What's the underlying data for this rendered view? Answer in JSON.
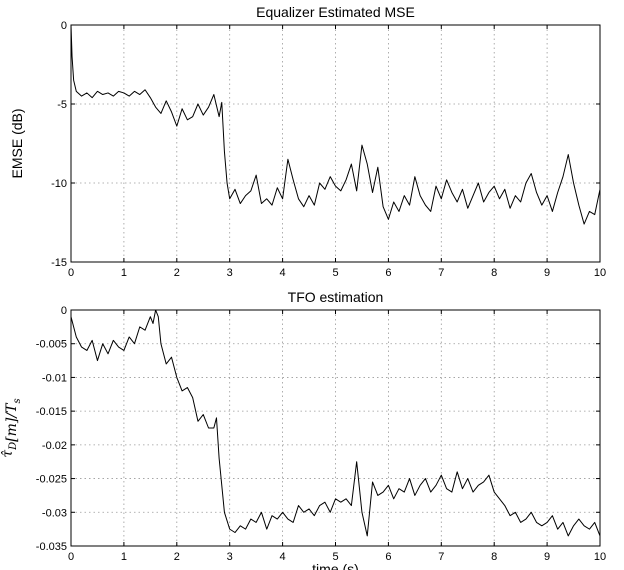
{
  "chart_data": [
    {
      "type": "line",
      "title": "Equalizer Estimated MSE",
      "xlabel": "",
      "ylabel": "EMSE (dB)",
      "xlim": [
        0,
        10
      ],
      "ylim": [
        -15,
        0
      ],
      "xticks": [
        "0",
        "1",
        "2",
        "3",
        "4",
        "5",
        "6",
        "7",
        "8",
        "9",
        "10"
      ],
      "yticks": [
        "0",
        "-5",
        "-10",
        "-15"
      ],
      "grid": true,
      "series": [
        {
          "color": "#000000",
          "x": [
            0,
            0.02,
            0.05,
            0.1,
            0.2,
            0.3,
            0.4,
            0.5,
            0.6,
            0.7,
            0.8,
            0.9,
            1.0,
            1.1,
            1.2,
            1.3,
            1.4,
            1.5,
            1.6,
            1.7,
            1.8,
            1.9,
            2.0,
            2.1,
            2.2,
            2.3,
            2.4,
            2.5,
            2.6,
            2.7,
            2.8,
            2.85,
            2.9,
            2.95,
            3.0,
            3.1,
            3.2,
            3.3,
            3.4,
            3.5,
            3.6,
            3.7,
            3.8,
            3.9,
            4.0,
            4.1,
            4.2,
            4.3,
            4.4,
            4.5,
            4.6,
            4.7,
            4.8,
            4.9,
            5.0,
            5.1,
            5.2,
            5.3,
            5.4,
            5.5,
            5.6,
            5.7,
            5.8,
            5.9,
            6.0,
            6.1,
            6.2,
            6.3,
            6.4,
            6.5,
            6.6,
            6.7,
            6.8,
            6.9,
            7.0,
            7.1,
            7.2,
            7.3,
            7.4,
            7.5,
            7.6,
            7.7,
            7.8,
            7.9,
            8.0,
            8.1,
            8.2,
            8.3,
            8.4,
            8.5,
            8.6,
            8.7,
            8.8,
            8.9,
            9.0,
            9.1,
            9.2,
            9.3,
            9.4,
            9.5,
            9.6,
            9.7,
            9.8,
            9.9,
            10.0
          ],
          "y": [
            0,
            -2.0,
            -3.5,
            -4.2,
            -4.5,
            -4.3,
            -4.6,
            -4.2,
            -4.4,
            -4.3,
            -4.5,
            -4.2,
            -4.3,
            -4.5,
            -4.2,
            -4.4,
            -4.1,
            -4.6,
            -5.2,
            -5.6,
            -4.8,
            -5.5,
            -6.4,
            -5.3,
            -6.0,
            -5.8,
            -5.0,
            -5.7,
            -5.2,
            -4.4,
            -5.8,
            -4.9,
            -8.0,
            -10.0,
            -11.0,
            -10.4,
            -11.3,
            -10.8,
            -10.5,
            -9.5,
            -11.3,
            -11.0,
            -11.4,
            -10.3,
            -11.0,
            -8.5,
            -9.8,
            -11.0,
            -11.5,
            -10.8,
            -11.4,
            -10.0,
            -10.4,
            -9.6,
            -10.2,
            -10.5,
            -9.8,
            -8.8,
            -10.5,
            -7.6,
            -8.8,
            -10.6,
            -9.0,
            -11.5,
            -12.3,
            -11.2,
            -11.8,
            -10.8,
            -11.4,
            -9.6,
            -10.8,
            -11.4,
            -11.8,
            -10.2,
            -11.0,
            -9.8,
            -10.6,
            -11.2,
            -10.4,
            -11.6,
            -10.8,
            -10.0,
            -11.2,
            -10.6,
            -10.2,
            -11.0,
            -10.4,
            -11.6,
            -10.8,
            -11.2,
            -10.0,
            -9.4,
            -10.6,
            -11.4,
            -10.8,
            -11.8,
            -10.6,
            -9.6,
            -8.2,
            -10.0,
            -11.4,
            -12.6,
            -11.8,
            -12.0,
            -10.4
          ]
        }
      ]
    },
    {
      "type": "line",
      "title": "TFO estimation",
      "xlabel": "time (s)",
      "ylabel": "τ̂_D[m]/T_s",
      "xlim": [
        0,
        10
      ],
      "ylim": [
        -0.035,
        0
      ],
      "xticks": [
        "0",
        "1",
        "2",
        "3",
        "4",
        "5",
        "6",
        "7",
        "8",
        "9",
        "10"
      ],
      "yticks": [
        "0",
        "-0.005",
        "-0.01",
        "-0.015",
        "-0.02",
        "-0.025",
        "-0.03",
        "-0.035"
      ],
      "grid": true,
      "series": [
        {
          "color": "#000000",
          "x": [
            0,
            0.1,
            0.2,
            0.3,
            0.4,
            0.5,
            0.6,
            0.7,
            0.8,
            0.9,
            1.0,
            1.1,
            1.2,
            1.3,
            1.4,
            1.5,
            1.55,
            1.6,
            1.65,
            1.7,
            1.8,
            1.9,
            2.0,
            2.1,
            2.2,
            2.3,
            2.4,
            2.5,
            2.6,
            2.7,
            2.75,
            2.8,
            2.85,
            2.9,
            3.0,
            3.1,
            3.2,
            3.3,
            3.4,
            3.5,
            3.6,
            3.7,
            3.8,
            3.9,
            4.0,
            4.1,
            4.2,
            4.3,
            4.4,
            4.5,
            4.6,
            4.7,
            4.8,
            4.9,
            5.0,
            5.1,
            5.2,
            5.3,
            5.4,
            5.5,
            5.6,
            5.7,
            5.8,
            5.9,
            6.0,
            6.1,
            6.2,
            6.3,
            6.4,
            6.5,
            6.6,
            6.7,
            6.8,
            6.9,
            7.0,
            7.1,
            7.2,
            7.3,
            7.4,
            7.5,
            7.6,
            7.7,
            7.8,
            7.9,
            8.0,
            8.1,
            8.2,
            8.3,
            8.4,
            8.5,
            8.6,
            8.7,
            8.8,
            8.9,
            9.0,
            9.1,
            9.2,
            9.3,
            9.4,
            9.5,
            9.6,
            9.7,
            9.8,
            9.9,
            10.0
          ],
          "y": [
            -0.001,
            -0.004,
            -0.0055,
            -0.006,
            -0.0045,
            -0.0075,
            -0.005,
            -0.0065,
            -0.0045,
            -0.0055,
            -0.006,
            -0.004,
            -0.005,
            -0.0025,
            -0.003,
            -0.001,
            -0.002,
            0.0,
            -0.001,
            -0.005,
            -0.008,
            -0.007,
            -0.01,
            -0.012,
            -0.0115,
            -0.013,
            -0.0165,
            -0.0155,
            -0.0175,
            -0.0175,
            -0.016,
            -0.022,
            -0.026,
            -0.03,
            -0.0325,
            -0.033,
            -0.032,
            -0.0325,
            -0.031,
            -0.0315,
            -0.03,
            -0.0325,
            -0.0305,
            -0.031,
            -0.03,
            -0.031,
            -0.0315,
            -0.029,
            -0.03,
            -0.0295,
            -0.0305,
            -0.029,
            -0.0285,
            -0.03,
            -0.028,
            -0.0285,
            -0.028,
            -0.029,
            -0.0225,
            -0.03,
            -0.0335,
            -0.0255,
            -0.0275,
            -0.027,
            -0.026,
            -0.028,
            -0.0265,
            -0.027,
            -0.025,
            -0.0275,
            -0.026,
            -0.025,
            -0.027,
            -0.026,
            -0.0245,
            -0.0265,
            -0.027,
            -0.024,
            -0.0265,
            -0.025,
            -0.027,
            -0.026,
            -0.0255,
            -0.0245,
            -0.027,
            -0.028,
            -0.029,
            -0.0305,
            -0.03,
            -0.0315,
            -0.031,
            -0.03,
            -0.0315,
            -0.032,
            -0.0315,
            -0.0305,
            -0.0325,
            -0.0315,
            -0.0335,
            -0.032,
            -0.031,
            -0.032,
            -0.0325,
            -0.0315,
            -0.0335
          ]
        }
      ]
    }
  ]
}
